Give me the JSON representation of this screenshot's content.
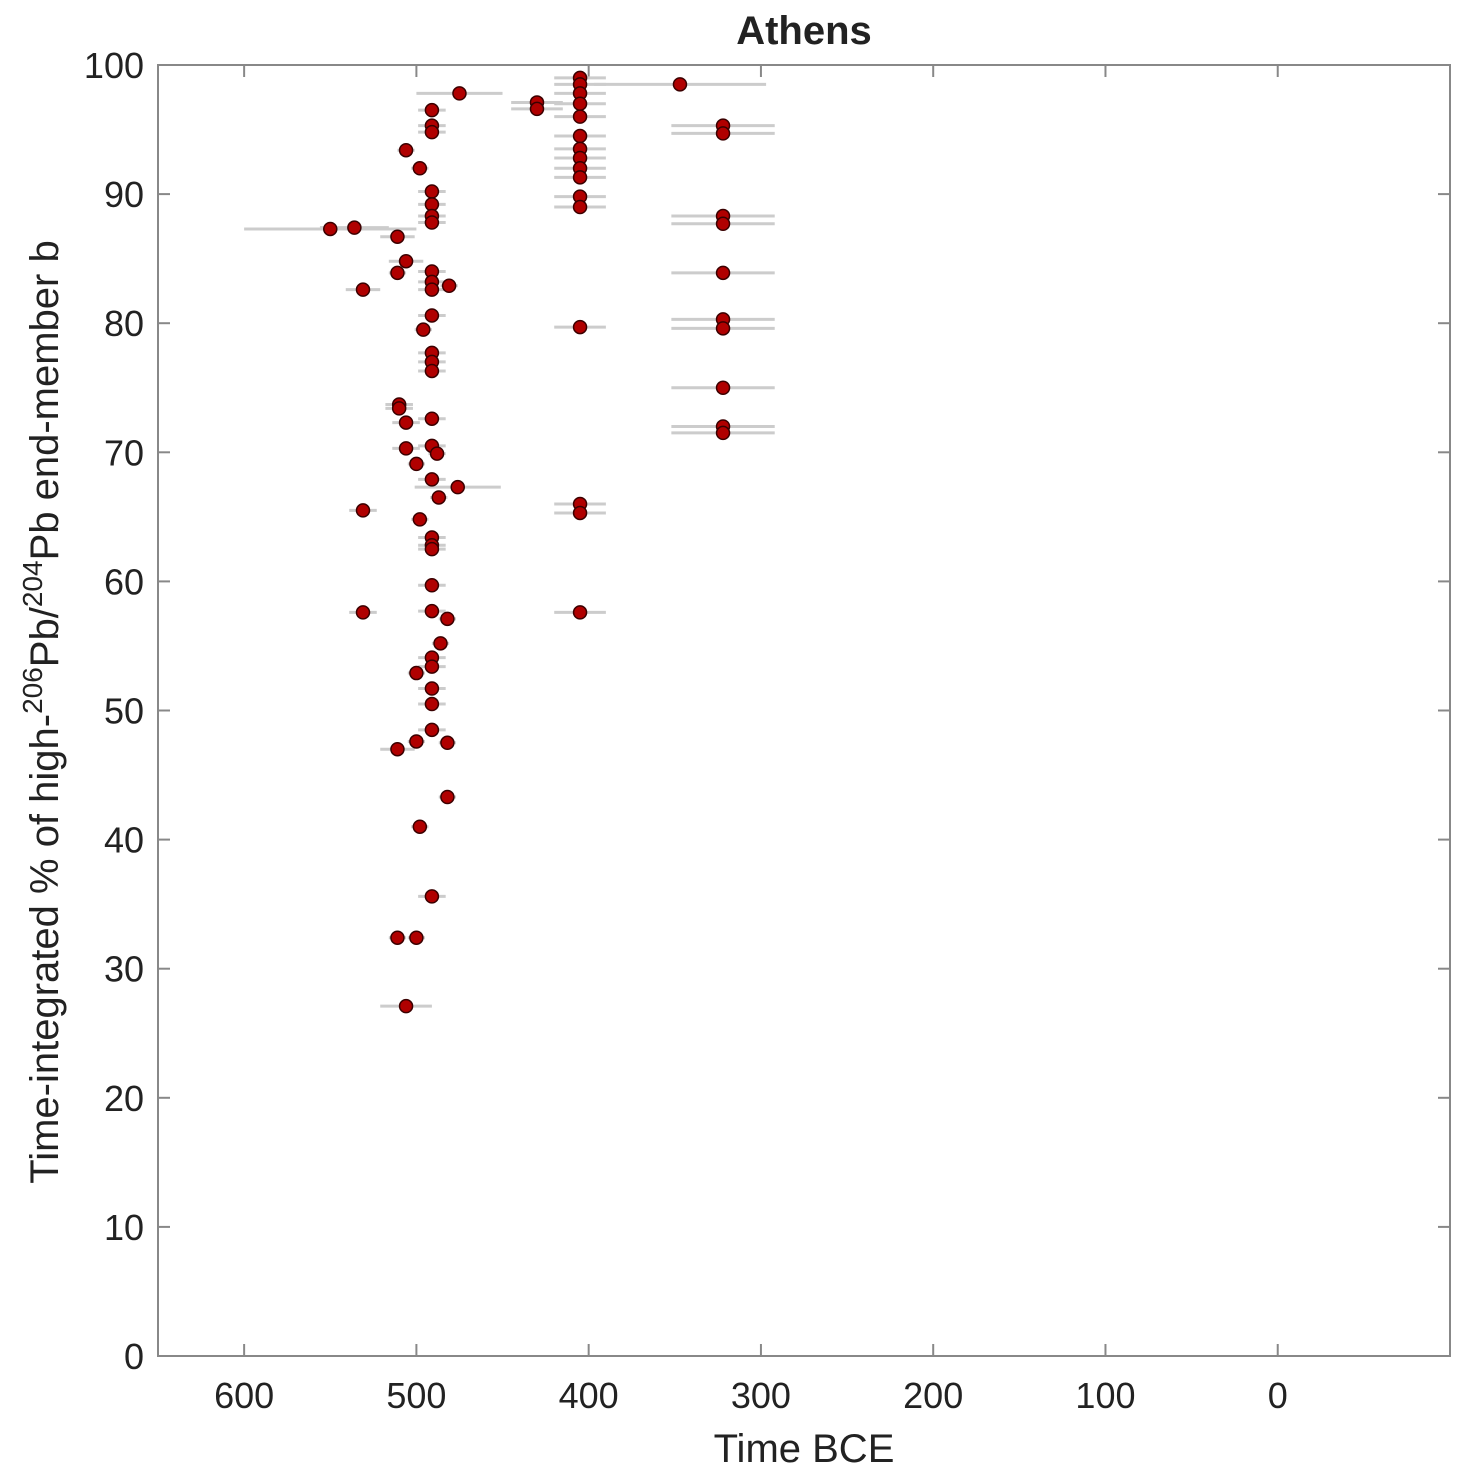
{
  "chart_data": {
    "type": "scatter",
    "title": "Athens",
    "x_label": "Time BCE",
    "y_label": [
      "Time-integrated % of high-",
      "206",
      "Pb/",
      "204",
      "Pb end-member b"
    ],
    "xlim": [
      650,
      -100
    ],
    "xticks": [
      600,
      500,
      400,
      300,
      200,
      100,
      0
    ],
    "ylim": [
      0,
      100
    ],
    "yticks": [
      0,
      10,
      20,
      30,
      40,
      50,
      60,
      70,
      80,
      90,
      100
    ],
    "grid": false,
    "errorbar_color": "#cccccc",
    "series": [
      {
        "color": "#b00000",
        "edgecolor": "#3a0000",
        "x": [
          475,
          347,
          430,
          430,
          405,
          405,
          405,
          405,
          405,
          405,
          405,
          405,
          405,
          405,
          405,
          405,
          405,
          405,
          405,
          405,
          322,
          322,
          322,
          322,
          322,
          322,
          322,
          322,
          322,
          322,
          550,
          536,
          531,
          531,
          531,
          511,
          506,
          498,
          506,
          511,
          491,
          491,
          491,
          491,
          491,
          491,
          491,
          491,
          491,
          491,
          491,
          491,
          491,
          491,
          491,
          491,
          491,
          491,
          491,
          491,
          491,
          491,
          491,
          491,
          491,
          491,
          491,
          491,
          496,
          481,
          510,
          510,
          506,
          506,
          488,
          487,
          500,
          476,
          498,
          482,
          486,
          500,
          511,
          500,
          482,
          482,
          498,
          511,
          500,
          506
        ],
        "values": [
          97.8,
          98.5,
          97.1,
          96.6,
          99,
          98.5,
          97.8,
          97,
          96,
          94.5,
          93.5,
          92.8,
          92,
          91.3,
          89.8,
          89,
          79.7,
          66,
          65.3,
          57.6,
          95.3,
          94.7,
          88.3,
          87.7,
          83.9,
          80.3,
          79.6,
          75,
          72,
          71.5,
          87.3,
          87.4,
          82.6,
          65.5,
          57.6,
          86.7,
          93.4,
          92,
          84.8,
          83.9,
          96.5,
          95.3,
          94.8,
          90.2,
          89.2,
          88.3,
          87.8,
          84,
          83.2,
          82.6,
          80.6,
          77.7,
          77,
          76.3,
          72.6,
          70.5,
          67.9,
          63.4,
          62.8,
          62.5,
          59.7,
          57.7,
          54.1,
          53.4,
          51.7,
          50.5,
          48.5,
          35.6,
          79.5,
          82.9,
          73.7,
          73.4,
          72.3,
          70.3,
          69.9,
          66.5,
          69.1,
          67.3,
          64.8,
          57.1,
          55.2,
          52.9,
          47,
          47.6,
          47.5,
          43.3,
          41,
          32.4,
          32.4,
          27.1
        ],
        "xerr": [
          25,
          50,
          15,
          15,
          15,
          15,
          15,
          15,
          15,
          15,
          15,
          15,
          15,
          15,
          15,
          15,
          15,
          15,
          15,
          15,
          30,
          30,
          30,
          30,
          30,
          30,
          30,
          30,
          30,
          30,
          50,
          20,
          10,
          8,
          8,
          10,
          5,
          5,
          10,
          5,
          8,
          8,
          8,
          8,
          8,
          8,
          8,
          8,
          8,
          8,
          8,
          8,
          8,
          8,
          8,
          8,
          8,
          8,
          8,
          8,
          8,
          8,
          8,
          8,
          8,
          8,
          8,
          8,
          5,
          5,
          8,
          8,
          8,
          8,
          5,
          5,
          5,
          25,
          5,
          5,
          5,
          5,
          10,
          5,
          5,
          5,
          5,
          5,
          5,
          15
        ]
      }
    ]
  }
}
